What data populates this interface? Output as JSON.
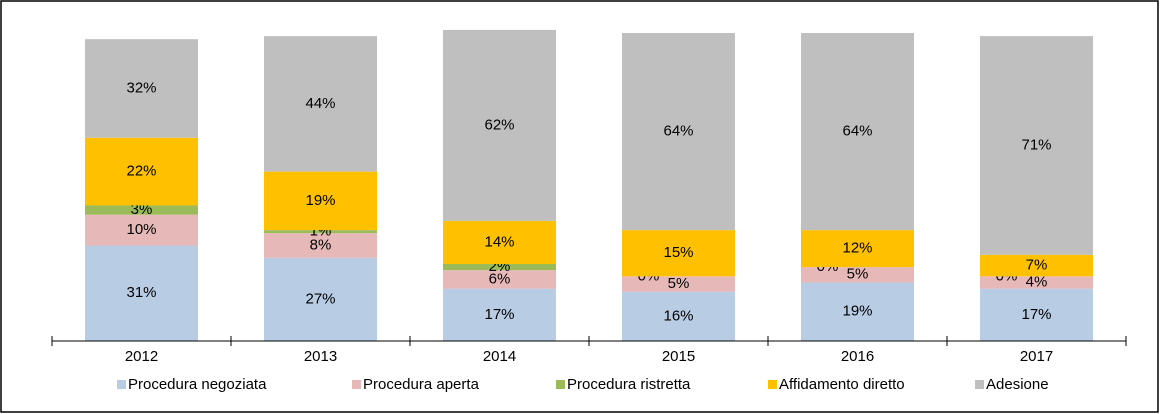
{
  "chart_data": {
    "type": "stacked_bar",
    "categories": [
      "2012",
      "2013",
      "2014",
      "2015",
      "2016",
      "2017"
    ],
    "series": [
      {
        "name": "Procedura negoziata",
        "color": "#b8cce4",
        "values": [
          31,
          27,
          17,
          16,
          19,
          17
        ],
        "value_labels": [
          "31%",
          "27%",
          "17%",
          "16%",
          "19%",
          "17%"
        ]
      },
      {
        "name": "Procedura aperta",
        "color": "#e6b9b8",
        "values": [
          10,
          8,
          6,
          5,
          5,
          4
        ],
        "value_labels": [
          "10%",
          "8%",
          "6%",
          "5%",
          "5%",
          "4%"
        ]
      },
      {
        "name": "Procedura ristretta",
        "color": "#9bbb59",
        "values": [
          3,
          1,
          2,
          0,
          0,
          0
        ],
        "value_labels": [
          "3%",
          "1%",
          "2%",
          "0%",
          "0%",
          "0%"
        ]
      },
      {
        "name": "Affidamento diretto",
        "color": "#ffc000",
        "values": [
          22,
          19,
          14,
          15,
          12,
          7
        ],
        "value_labels": [
          "22%",
          "19%",
          "14%",
          "15%",
          "12%",
          "7%"
        ]
      },
      {
        "name": "Adesione",
        "color": "#bfbfbf",
        "values": [
          32,
          44,
          62,
          64,
          64,
          71
        ],
        "value_labels": [
          "32%",
          "44%",
          "62%",
          "64%",
          "64%",
          "71%"
        ]
      }
    ],
    "ylim": [
      0,
      100
    ]
  }
}
